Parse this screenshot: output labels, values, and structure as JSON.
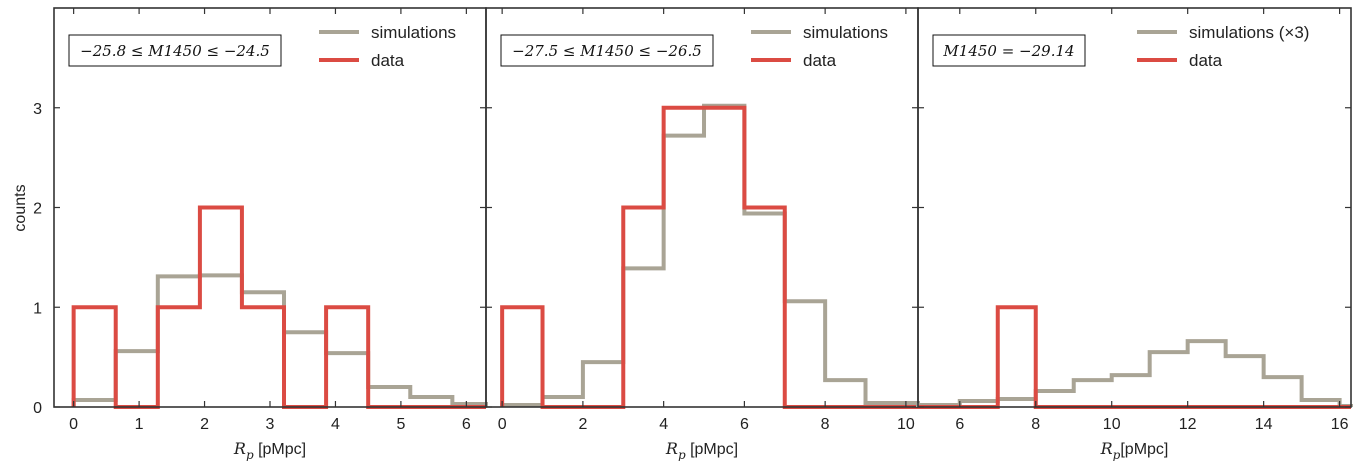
{
  "figure": {
    "ylabel": "counts",
    "yticks": [
      "0",
      "1",
      "2",
      "3"
    ],
    "colors": {
      "simulations": "#a9a495",
      "data": "#db4b43",
      "frame": "#333333"
    }
  },
  "chart_data": [
    {
      "type": "histogram-step",
      "annotation": "−25.8 ≤ M1450 ≤ −24.5",
      "xlabel_var": "R",
      "xlabel_sub": "p",
      "xlabel_unit": " [pMpc]",
      "xlim": [
        -0.3,
        6.3
      ],
      "ylim": [
        0,
        4
      ],
      "xticks": [
        0,
        1,
        2,
        3,
        4,
        5,
        6
      ],
      "series": [
        {
          "name": "simulations",
          "edges": [
            0,
            0.643,
            1.286,
            1.929,
            2.571,
            3.214,
            3.857,
            4.5,
            5.143,
            5.786,
            6.3
          ],
          "values": [
            0.07,
            0.56,
            1.31,
            1.32,
            1.15,
            0.75,
            0.54,
            0.2,
            0.1,
            0.03
          ]
        },
        {
          "name": "data",
          "edges": [
            0,
            0.643,
            1.286,
            1.929,
            2.571,
            3.214,
            3.857,
            4.5,
            6.3
          ],
          "values": [
            1,
            0,
            1,
            2,
            1,
            0,
            1,
            0
          ]
        }
      ]
    },
    {
      "type": "histogram-step",
      "annotation": "−27.5 ≤ M1450 ≤ −26.5",
      "xlabel_var": "R",
      "xlabel_sub": "p",
      "xlabel_unit": " [pMpc]",
      "xlim": [
        -0.4,
        10.3
      ],
      "ylim": [
        0,
        4
      ],
      "xticks": [
        0,
        2,
        4,
        6,
        8,
        10
      ],
      "series": [
        {
          "name": "simulations",
          "edges": [
            0,
            1,
            2,
            3,
            4,
            5,
            6,
            7,
            8,
            9,
            10.3
          ],
          "values": [
            0.02,
            0.1,
            0.45,
            1.39,
            2.72,
            3.02,
            1.94,
            1.06,
            0.27,
            0.04
          ]
        },
        {
          "name": "data",
          "edges": [
            0,
            1,
            2,
            3,
            4,
            5,
            6,
            7,
            10.3
          ],
          "values": [
            1,
            0,
            0,
            2,
            3,
            3,
            2,
            0
          ]
        }
      ]
    },
    {
      "type": "histogram-step",
      "annotation": "M1450 = −29.14",
      "xlabel_var": "R",
      "xlabel_sub": "p",
      "xlabel_unit": "[pMpc]",
      "xlim": [
        4.9,
        16.3
      ],
      "ylim": [
        0,
        4
      ],
      "xticks": [
        6,
        8,
        10,
        12,
        14,
        16
      ],
      "series": [
        {
          "name": "simulations (×3)",
          "edges": [
            4.9,
            6,
            7,
            8,
            9,
            10,
            11,
            12,
            13,
            14,
            15,
            16,
            16.3
          ],
          "values": [
            0.02,
            0.06,
            0.08,
            0.16,
            0.27,
            0.32,
            0.55,
            0.66,
            0.51,
            0.3,
            0.07,
            0.01
          ]
        },
        {
          "name": "data",
          "edges": [
            4.9,
            7,
            8,
            16.3
          ],
          "values": [
            0,
            1,
            0
          ]
        }
      ]
    }
  ]
}
